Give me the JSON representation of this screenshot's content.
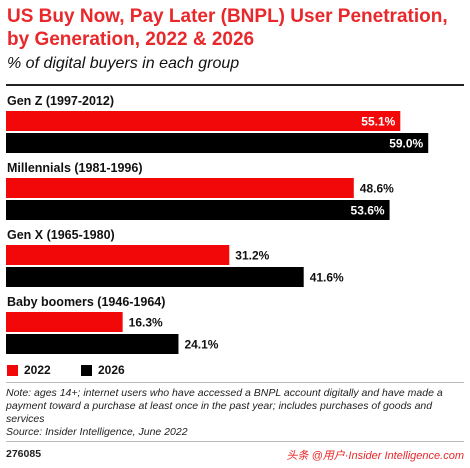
{
  "header": {
    "title": "US Buy Now, Pay Later (BNPL) User Penetration, by Generation, 2022 & 2026",
    "subtitle": "% of digital buyers in each group"
  },
  "colors": {
    "series_2022": "#f20808",
    "series_2026": "#000000",
    "title": "#e8282b"
  },
  "chart_data": {
    "type": "bar",
    "orientation": "horizontal",
    "categories": [
      "Gen Z (1997-2012)",
      "Millennials (1981-1996)",
      "Gen X (1965-1980)",
      "Baby boomers (1946-1964)"
    ],
    "series": [
      {
        "name": "2022",
        "values": [
          55.1,
          48.6,
          31.2,
          16.3
        ],
        "labels": [
          "55.1%",
          "48.6%",
          "31.2%",
          "16.3%"
        ]
      },
      {
        "name": "2026",
        "values": [
          59.0,
          53.6,
          41.6,
          24.1
        ],
        "labels": [
          "59.0%",
          "53.6%",
          "41.6%",
          "24.1%"
        ]
      }
    ],
    "value_unit": "%",
    "xlim": [
      0,
      64
    ],
    "grid": false,
    "legend_position": "bottom-left"
  },
  "footer": {
    "note": "Note: ages 14+; internet users who have accessed a BNPL account digitally and have made a payment toward a purchase at least once in the past year; includes purchases of goods and services",
    "source": "Source: Insider Intelligence, June 2022",
    "chart_id": "276085",
    "watermark": "头条 @用户·Insider Intelligence.com"
  }
}
